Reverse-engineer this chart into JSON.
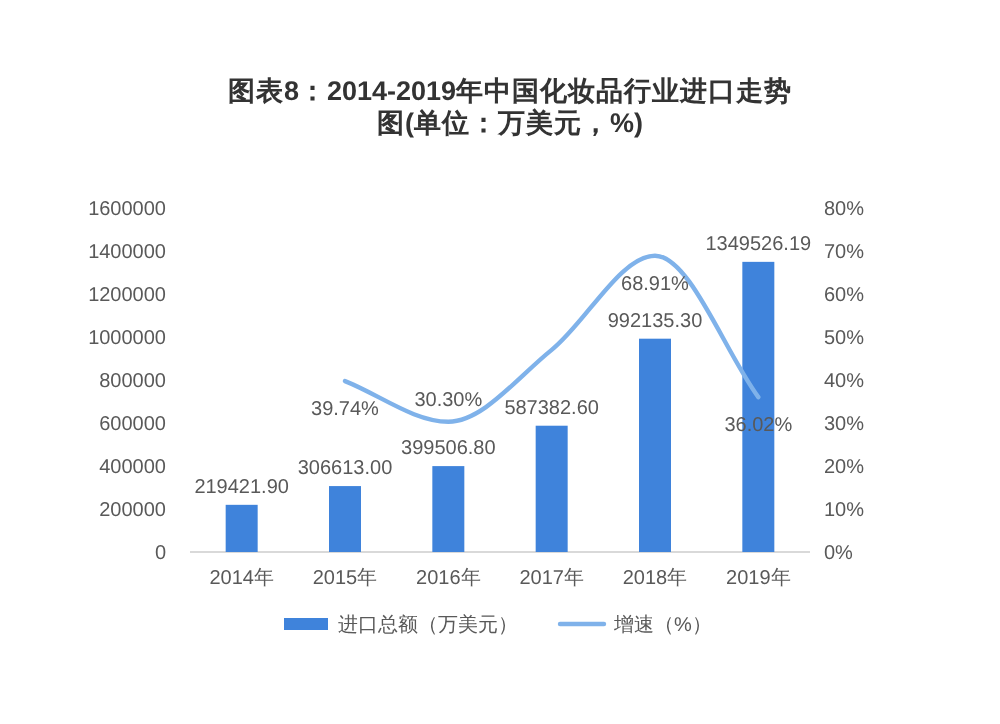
{
  "chart_data": {
    "type": "bar",
    "title": "图表8：2014-2019年中国化妆品行业进口走势图(单位：万美元，%)",
    "categories": [
      "2014年",
      "2015年",
      "2016年",
      "2017年",
      "2018年",
      "2019年"
    ],
    "series": [
      {
        "name": "进口总额（万美元）",
        "color": "#3f83db",
        "values": [
          219421.9,
          306613,
          399506.8,
          587382.6,
          992135.3,
          1349526.19
        ],
        "value_labels": [
          "219421.90",
          "306613.00",
          "399506.80",
          "587382.60",
          "992135.30",
          "1349526.19"
        ]
      },
      {
        "name": "增速（%）",
        "type": "line",
        "axis": "y2",
        "color": "#7fb2ea",
        "values": [
          null,
          39.74,
          30.3,
          47,
          68.91,
          36.02
        ],
        "value_labels": [
          null,
          "39.74%",
          "30.30%",
          null,
          "68.91%",
          "36.02%"
        ]
      }
    ],
    "ylim": [
      0,
      1600000
    ],
    "yticks": [
      0,
      200000,
      400000,
      600000,
      800000,
      1000000,
      1200000,
      1400000,
      1600000
    ],
    "y2lim": [
      0,
      80
    ],
    "y2ticks": [
      {
        "value": 0,
        "label": "0%"
      },
      {
        "value": 10,
        "label": "10%"
      },
      {
        "value": 20,
        "label": "20%"
      },
      {
        "value": 30,
        "label": "30%"
      },
      {
        "value": 40,
        "label": "40%"
      },
      {
        "value": 50,
        "label": "50%"
      },
      {
        "value": 60,
        "label": "60%"
      },
      {
        "value": 70,
        "label": "70%"
      },
      {
        "value": 80,
        "label": "80%"
      }
    ],
    "legend": "bottom",
    "marker": "none",
    "line_style": "solid"
  }
}
